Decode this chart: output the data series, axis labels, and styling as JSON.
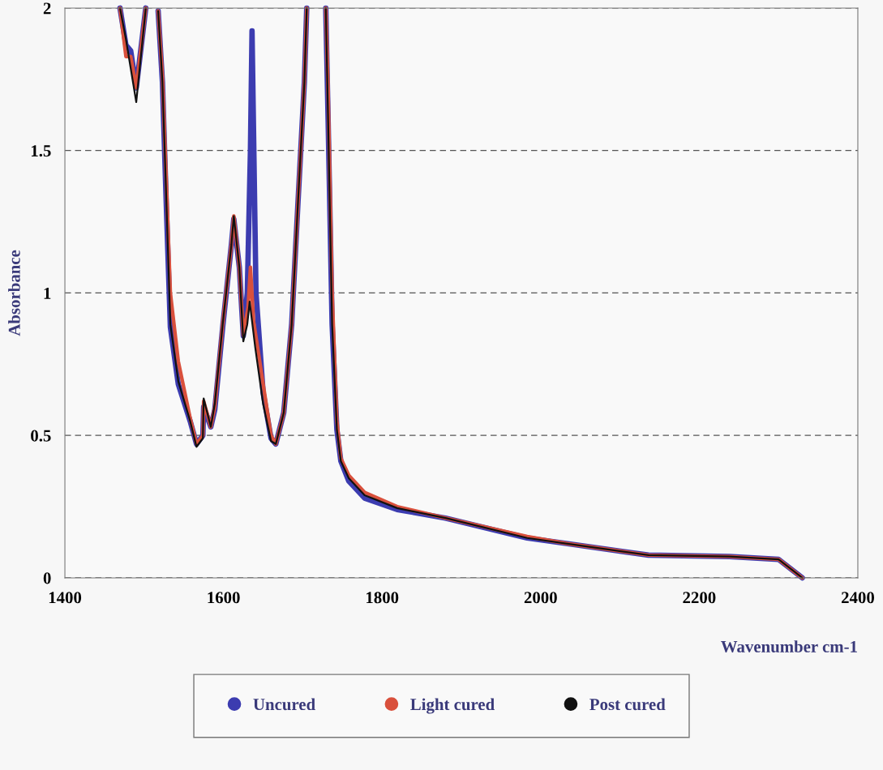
{
  "chart_data": {
    "type": "line",
    "xlabel": "Wavenumber cm-1",
    "ylabel": "Absorbance",
    "xlim": [
      1400,
      2400
    ],
    "xticks": [
      1400,
      1600,
      1800,
      2000,
      2200,
      2400
    ],
    "ylim": [
      0,
      2
    ],
    "yticks": [
      0,
      0.5,
      1,
      1.5,
      2
    ],
    "grid": "y",
    "legend": "bottom",
    "series": [
      {
        "name": "Uncured",
        "color": "#3c3cb0",
        "x": [
          1469.5,
          1477,
          1483,
          1490,
          1502,
          1505,
          1517.6,
          1523,
          1528,
          1533,
          1543,
          1558,
          1566,
          1574,
          1575,
          1584,
          1589,
          1599,
          1610,
          1613,
          1620,
          1625,
          1630,
          1634,
          1636,
          1638,
          1641,
          1650,
          1660,
          1666,
          1676,
          1686,
          1694,
          1702,
          1705,
          1717,
          1729,
          1732,
          1737,
          1743,
          1748,
          1758,
          1778,
          1819,
          1880,
          1983,
          2034,
          2136,
          2238,
          2300,
          2330
        ],
        "values": [
          2.0,
          1.87,
          1.85,
          1.72,
          2.0,
          null,
          1.99,
          1.74,
          1.3,
          0.88,
          0.68,
          0.55,
          0.47,
          0.5,
          0.6,
          0.53,
          0.59,
          0.88,
          1.17,
          1.26,
          1.09,
          0.85,
          1.0,
          1.5,
          1.92,
          1.55,
          1.0,
          0.65,
          0.49,
          0.47,
          0.58,
          0.89,
          1.32,
          1.74,
          2.0,
          null,
          2.0,
          1.6,
          0.89,
          0.52,
          0.41,
          0.34,
          0.28,
          0.24,
          0.21,
          0.14,
          0.12,
          0.08,
          0.075,
          0.065,
          0.0
        ]
      },
      {
        "name": "Light cured",
        "color": "#d9503c",
        "x": [
          1469.5,
          1477,
          1483,
          1490,
          1502,
          1505,
          1517.6,
          1523,
          1528,
          1533,
          1543,
          1558,
          1566,
          1574,
          1575,
          1584,
          1589,
          1599,
          1610,
          1613,
          1620,
          1625,
          1631,
          1634,
          1638,
          1650,
          1660,
          1666,
          1676,
          1686,
          1694,
          1702,
          1705,
          1717,
          1729,
          1732,
          1737,
          1743,
          1748,
          1758,
          1778,
          1819,
          1880,
          1983,
          2034,
          2136,
          2238,
          2300,
          2330
        ],
        "values": [
          2.0,
          1.83,
          1.83,
          1.72,
          2.0,
          null,
          1.99,
          1.76,
          1.38,
          1.0,
          0.76,
          0.56,
          0.47,
          0.5,
          0.62,
          0.53,
          0.6,
          0.89,
          1.17,
          1.27,
          1.09,
          0.85,
          0.95,
          1.09,
          0.9,
          0.68,
          0.5,
          0.47,
          0.58,
          0.89,
          1.32,
          1.74,
          2.0,
          null,
          2.0,
          1.7,
          1.0,
          0.55,
          0.42,
          0.36,
          0.3,
          0.25,
          0.21,
          0.145,
          0.12,
          0.08,
          0.075,
          0.065,
          0.0
        ]
      },
      {
        "name": "Post cured",
        "color": "#111111",
        "x": [
          1469.5,
          1477,
          1490,
          1502,
          1505,
          1517.6,
          1523,
          1528,
          1533,
          1543,
          1558,
          1566,
          1574,
          1575,
          1584,
          1589,
          1599,
          1610,
          1613,
          1620,
          1625,
          1630,
          1633,
          1640,
          1650,
          1660,
          1666,
          1676,
          1686,
          1694,
          1702,
          1705,
          1717,
          1729,
          1732,
          1737,
          1743,
          1748,
          1758,
          1778,
          1819,
          1880,
          1983,
          2034,
          2136,
          2238,
          2300,
          2330
        ],
        "values": [
          2.0,
          1.89,
          1.67,
          2.0,
          null,
          1.99,
          1.74,
          1.32,
          0.89,
          0.69,
          0.55,
          0.46,
          0.49,
          0.63,
          0.53,
          0.61,
          0.89,
          1.17,
          1.27,
          1.09,
          0.83,
          0.89,
          0.97,
          0.81,
          0.61,
          0.48,
          0.47,
          0.58,
          0.89,
          1.32,
          1.74,
          2.0,
          null,
          2.0,
          1.6,
          0.89,
          0.52,
          0.41,
          0.35,
          0.29,
          0.245,
          0.21,
          0.14,
          0.12,
          0.08,
          0.075,
          0.065,
          0.0
        ]
      }
    ]
  }
}
